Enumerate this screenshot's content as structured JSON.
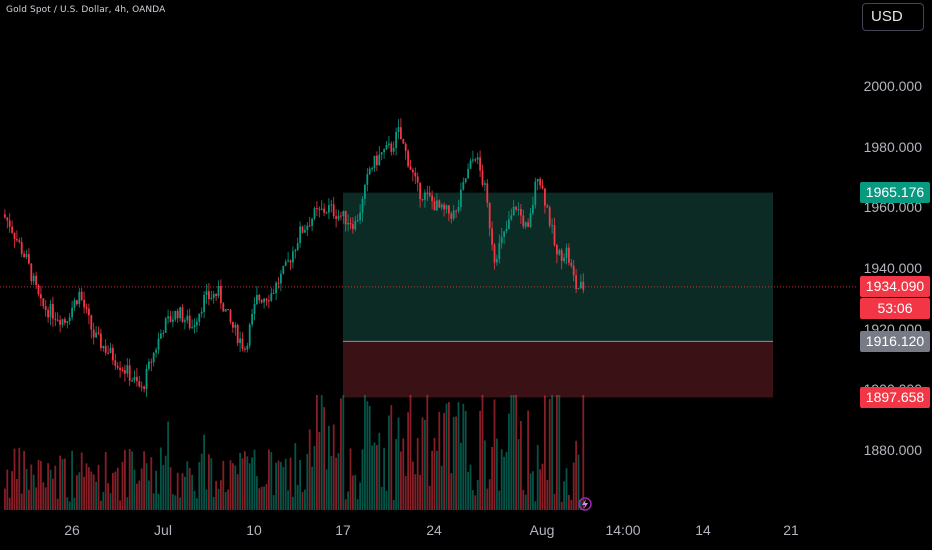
{
  "header": {
    "title": "Gold Spot / U.S. Dollar, 4h, OANDA"
  },
  "currency_button": {
    "label": "USD"
  },
  "price_badges": {
    "target": {
      "price": "1965.176",
      "value": 1965.176,
      "color": "#089981"
    },
    "current": {
      "price": "1934.090",
      "value": 1934.09,
      "countdown": "53:06",
      "color": "#f23645"
    },
    "entry": {
      "price": "1916.120",
      "value": 1916.12,
      "color": "#787b86"
    },
    "stop": {
      "price": "1897.658",
      "value": 1897.658,
      "color": "#f23645"
    }
  },
  "chart_data": {
    "type": "candlestick",
    "y_axis_ticks": [
      "2000.000",
      "1980.000",
      "1960.000",
      "1940.000",
      "1920.000",
      "1900.000",
      "1880.000"
    ],
    "x_axis_ticks": [
      "26",
      "Jul",
      "10",
      "17",
      "24",
      "Aug",
      "14:00",
      "14",
      "21"
    ],
    "ylim": [
      1870,
      2010
    ],
    "up_color": "#089981",
    "down_color": "#f23645",
    "trend_path": [
      [
        0,
        1958
      ],
      [
        3,
        1955
      ],
      [
        7,
        1948
      ],
      [
        10,
        1943
      ],
      [
        16,
        1928
      ],
      [
        20,
        1926
      ],
      [
        26,
        1923
      ],
      [
        32,
        1932
      ],
      [
        38,
        1918
      ],
      [
        45,
        1912
      ],
      [
        52,
        1906
      ],
      [
        58,
        1900
      ],
      [
        62,
        1910
      ],
      [
        67,
        1921
      ],
      [
        73,
        1926
      ],
      [
        79,
        1921
      ],
      [
        84,
        1930
      ],
      [
        90,
        1932
      ],
      [
        95,
        1922
      ],
      [
        101,
        1914
      ],
      [
        106,
        1930
      ],
      [
        112,
        1932
      ],
      [
        118,
        1940
      ],
      [
        124,
        1952
      ],
      [
        130,
        1958
      ],
      [
        136,
        1960
      ],
      [
        142,
        1957
      ],
      [
        147,
        1955
      ],
      [
        150,
        1962
      ],
      [
        153,
        1973
      ],
      [
        158,
        1978
      ],
      [
        162,
        1980
      ],
      [
        165,
        1985
      ],
      [
        169,
        1976
      ],
      [
        173,
        1966
      ],
      [
        178,
        1963
      ],
      [
        183,
        1959
      ],
      [
        189,
        1958
      ],
      [
        193,
        1970
      ],
      [
        197,
        1978
      ],
      [
        201,
        1966
      ],
      [
        205,
        1944
      ],
      [
        209,
        1951
      ],
      [
        214,
        1961
      ],
      [
        219,
        1952
      ],
      [
        223,
        1972
      ],
      [
        227,
        1960
      ],
      [
        231,
        1944
      ],
      [
        235,
        1946
      ],
      [
        239,
        1934
      ],
      [
        241,
        1934
      ]
    ],
    "position_tool": {
      "entry": 1916.12,
      "target": 1965.176,
      "stop": 1897.658,
      "start_date": "Jul 17",
      "end_date": "Aug 20",
      "profit_color": "#0c2b25",
      "loss_color": "#3a1216"
    },
    "volume": {
      "color_up": "#089981",
      "color_down": "#f23645"
    }
  }
}
